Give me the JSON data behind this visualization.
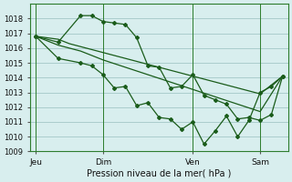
{
  "bg_color": "#d8eeee",
  "grid_color": "#aacccc",
  "line_color": "#1a5c1a",
  "marker_color": "#1a5c1a",
  "xlabel": "Pression niveau de la mer( hPa )",
  "ylim": [
    1009,
    1019
  ],
  "yticks": [
    1009,
    1010,
    1011,
    1012,
    1013,
    1014,
    1015,
    1016,
    1017,
    1018
  ],
  "xtick_labels": [
    "Jeu",
    "Dim",
    "Ven",
    "Sam"
  ],
  "xtick_positions": [
    0,
    6,
    14,
    20
  ],
  "vlines": [
    0,
    6,
    14,
    20
  ],
  "series1_x": [
    0,
    1,
    2,
    3,
    4,
    5,
    6,
    7,
    8,
    9,
    10,
    11,
    12,
    13,
    14,
    15,
    16,
    17,
    18,
    19,
    20,
    21,
    22
  ],
  "series1_y": [
    1016.8,
    1016.7,
    1016.6,
    1016.3,
    1016.1,
    1015.9,
    1015.7,
    1015.5,
    1015.3,
    1015.1,
    1014.9,
    1014.7,
    1014.5,
    1014.3,
    1014.1,
    1013.9,
    1013.7,
    1013.5,
    1013.3,
    1013.1,
    1012.9,
    1013.5,
    1014.1
  ],
  "series2_x": [
    0,
    2,
    4,
    5,
    6,
    7,
    8,
    9,
    10,
    11,
    12,
    13,
    14,
    15,
    16,
    17,
    18,
    19,
    20,
    21,
    22
  ],
  "series2_y": [
    1016.8,
    1016.4,
    1018.2,
    1018.2,
    1017.8,
    1017.7,
    1017.6,
    1016.7,
    1014.8,
    1014.7,
    1013.3,
    1013.4,
    1014.2,
    1012.8,
    1012.5,
    1012.2,
    1011.2,
    1011.3,
    1011.1,
    1011.5,
    1014.1
  ],
  "series3_x": [
    0,
    2,
    4,
    5,
    6,
    7,
    8,
    9,
    10,
    11,
    12,
    13,
    14,
    15,
    16,
    17,
    18,
    19,
    20,
    21,
    22
  ],
  "series3_y": [
    1016.8,
    1015.3,
    1015.0,
    1014.8,
    1014.2,
    1013.3,
    1013.4,
    1012.1,
    1012.3,
    1011.3,
    1011.2,
    1010.5,
    1011.0,
    1009.5,
    1010.4,
    1011.4,
    1010.0,
    1011.1,
    1013.0,
    1013.4,
    1014.1
  ],
  "series4_x": [
    0,
    2,
    4,
    6,
    8,
    10,
    12,
    14,
    16,
    18,
    20,
    22
  ],
  "series4_y": [
    1016.8,
    1016.2,
    1015.8,
    1015.2,
    1014.7,
    1014.2,
    1013.7,
    1013.2,
    1012.7,
    1012.2,
    1011.7,
    1014.1
  ]
}
